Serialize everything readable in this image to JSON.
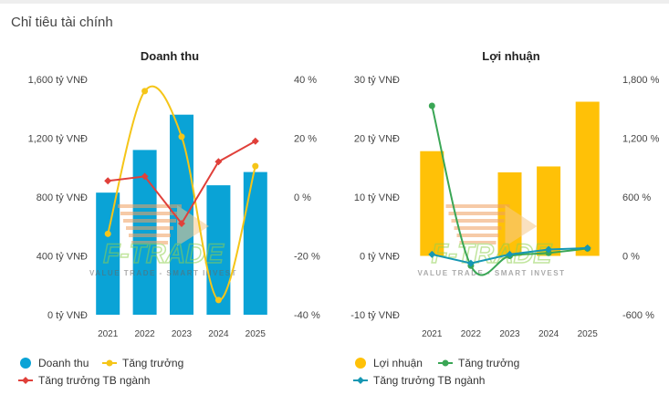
{
  "section_title": "Chỉ tiêu tài chính",
  "watermark": "F-TRADE",
  "watermark_tagline": "VALUE TRADE - SMART INVEST",
  "chart_data": [
    {
      "type": "bar",
      "title": "Doanh thu",
      "categories": [
        "2021",
        "2022",
        "2023",
        "2024",
        "2025"
      ],
      "y_left": {
        "min": 0,
        "max": 1600,
        "ticks": [
          0,
          400,
          800,
          1200,
          1600
        ],
        "tick_labels": [
          "0 tỷ VNĐ",
          "400 tỷ VNĐ",
          "800 tỷ VNĐ",
          "1,200 tỷ VNĐ",
          "1,600 tỷ VNĐ"
        ]
      },
      "y_right": {
        "min": -40,
        "max": 40,
        "ticks": [
          -40,
          -20,
          0,
          20,
          40
        ],
        "tick_labels": [
          "-40 %",
          "-20 %",
          "0 %",
          "20 %",
          "40 %"
        ]
      },
      "series": [
        {
          "name": "Doanh thu",
          "kind": "bar",
          "axis": "left",
          "color": "#0aa3d6",
          "values": [
            830,
            1120,
            1360,
            880,
            970
          ]
        },
        {
          "name": "Tăng trưởng",
          "kind": "line",
          "smooth": true,
          "axis": "right",
          "color": "#f5c518",
          "values": [
            -12.5,
            36,
            20.5,
            -35,
            10.5
          ]
        },
        {
          "name": "Tăng trưởng TB ngành",
          "kind": "line",
          "axis": "right",
          "color": "#e0403a",
          "values": [
            5.5,
            7,
            -9,
            12,
            19
          ]
        }
      ],
      "legend_position": "bottom",
      "grid": false
    },
    {
      "type": "bar",
      "title": "Lợi nhuận",
      "categories": [
        "2021",
        "2022",
        "2023",
        "2024",
        "2025"
      ],
      "y_left": {
        "min": -10,
        "max": 30,
        "ticks": [
          -10,
          0,
          10,
          20,
          30
        ],
        "tick_labels": [
          "-10 tỷ VNĐ",
          "0 tỷ VNĐ",
          "10 tỷ VNĐ",
          "20 tỷ VNĐ",
          "30 tỷ VNĐ"
        ]
      },
      "y_right": {
        "min": -600,
        "max": 1800,
        "ticks": [
          -600,
          0,
          600,
          1200,
          1800
        ],
        "tick_labels": [
          "-600 %",
          "0 %",
          "600 %",
          "1,200 %",
          "1,800 %"
        ]
      },
      "series": [
        {
          "name": "Lợi nhuận",
          "kind": "bar",
          "axis": "left",
          "color": "#ffc107",
          "values": [
            17.8,
            0,
            14.2,
            15.2,
            26.2
          ]
        },
        {
          "name": "Tăng trưởng",
          "kind": "line",
          "smooth": true,
          "axis": "right",
          "color": "#3aa655",
          "values": [
            1530,
            -100,
            0,
            30,
            75
          ]
        },
        {
          "name": "Tăng trưởng TB ngành",
          "kind": "line",
          "axis": "right",
          "color": "#1597b3",
          "values": [
            15,
            -75,
            15,
            65,
            80
          ]
        }
      ],
      "legend_position": "bottom",
      "grid": false
    }
  ]
}
